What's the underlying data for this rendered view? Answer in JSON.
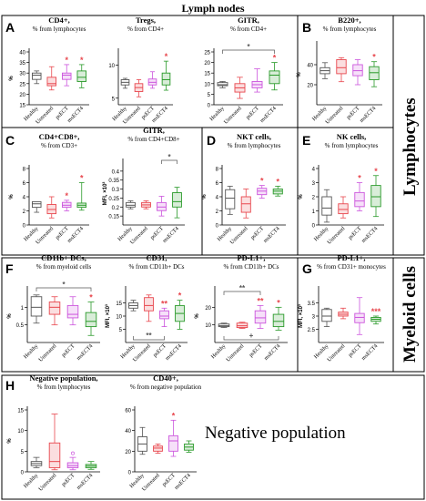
{
  "figure_title": "Lymph nodes",
  "side_labels": {
    "lymphocytes": "Lymphocytes",
    "myeloid": "Myeloid cells",
    "negative": "Negative population"
  },
  "section_letters": [
    "A",
    "B",
    "C",
    "D",
    "E",
    "F",
    "G",
    "H"
  ],
  "colors": {
    "Healthy": "#555555",
    "Untreated": "#e8474e",
    "psECT": "#cc55dd",
    "msECT4": "#2a9a2a",
    "star": "#e8474e",
    "annotation": "#555555"
  },
  "chart_data": [
    {
      "id": "cd4",
      "section": "A",
      "type": "box",
      "title": "CD4+,",
      "subtitle": "% from lymphocytes",
      "ylabel": "%",
      "categories": [
        "Healthy",
        "Untreated",
        "psECT",
        "msECT4"
      ],
      "ylim": [
        15,
        40
      ],
      "yticks": [
        15,
        20,
        25,
        30,
        35,
        40
      ],
      "boxes": [
        [
          25,
          27,
          29,
          30,
          31
        ],
        [
          22,
          24,
          25,
          28,
          33
        ],
        [
          24,
          27,
          29,
          30,
          34
        ],
        [
          23,
          26,
          28,
          31,
          34
        ]
      ],
      "stars": [
        "",
        "",
        "*",
        "*"
      ]
    },
    {
      "id": "tregs",
      "section": "A",
      "type": "box",
      "title": "Tregs,",
      "subtitle": "% from CD4+",
      "ylabel": "",
      "categories": [
        "Healthy",
        "Untreated",
        "psECT",
        "msECT4"
      ],
      "ylim": [
        4,
        12
      ],
      "yticks": [
        5,
        10
      ],
      "boxes": [
        [
          6.5,
          7,
          7.4,
          7.8,
          8
        ],
        [
          5.2,
          6,
          6.6,
          7.2,
          7.8
        ],
        [
          6.5,
          7,
          7.4,
          7.9,
          9
        ],
        [
          6.2,
          7,
          7.8,
          8.8,
          10.6
        ]
      ],
      "stars": [
        "",
        "",
        "",
        "*"
      ]
    },
    {
      "id": "gitr1",
      "section": "A",
      "type": "box",
      "title": "GITR,",
      "subtitle": "% from CD4+",
      "ylabel": "",
      "categories": [
        "Healthy",
        "Untreated",
        "psECT",
        "msECT4"
      ],
      "ylim": [
        0,
        25
      ],
      "yticks": [
        0,
        5,
        10,
        15,
        20,
        25
      ],
      "boxes": [
        [
          8,
          9,
          9.5,
          10.5,
          11
        ],
        [
          3,
          6,
          8,
          10,
          13
        ],
        [
          6,
          8,
          9.5,
          11,
          17
        ],
        [
          7,
          10,
          14,
          16,
          20
        ]
      ],
      "stars": [
        "",
        "",
        "",
        "*"
      ],
      "brackets": [
        {
          "from": 0,
          "to": 3,
          "side": "top",
          "label": "*"
        }
      ]
    },
    {
      "id": "b220",
      "section": "B",
      "type": "box",
      "title": "B220+,",
      "subtitle": "% from lymphocytes",
      "ylabel": "%",
      "categories": [
        "Healthy",
        "Untreated",
        "psECT",
        "msECT4"
      ],
      "ylim": [
        0,
        60
      ],
      "yticks": [
        20,
        40
      ],
      "boxes": [
        [
          26,
          31,
          34,
          37,
          42
        ],
        [
          23,
          31,
          37,
          45,
          47
        ],
        [
          20,
          29,
          34,
          40,
          45
        ],
        [
          18,
          25,
          32,
          38,
          43
        ]
      ],
      "stars": [
        "",
        "",
        "",
        "*"
      ]
    },
    {
      "id": "cd4cd8",
      "section": "C",
      "type": "box",
      "title": "CD4+CD8+,",
      "subtitle": "% from CD3+",
      "ylabel": "%",
      "categories": [
        "Healthy",
        "Untreated",
        "psECT",
        "msECT4"
      ],
      "ylim": [
        0,
        8
      ],
      "yticks": [
        0,
        2,
        4,
        6,
        8
      ],
      "boxes": [
        [
          1.8,
          2.5,
          3,
          3.3,
          3.3
        ],
        [
          1,
          1.6,
          2.2,
          2.9,
          4
        ],
        [
          2,
          2.5,
          2.8,
          3.2,
          3.5
        ],
        [
          2.1,
          2.5,
          2.8,
          3.1,
          6
        ]
      ],
      "stars": [
        "",
        "",
        "*",
        "*"
      ]
    },
    {
      "id": "gitr2",
      "section": "C",
      "type": "box",
      "title": "GITR,",
      "subtitle": "% from CD4+CD8+",
      "ylabel": "MFI, ×10³",
      "categories": [
        "Healthy",
        "Untreated",
        "psECT",
        "msECT4"
      ],
      "ylim": [
        0.1,
        0.45
      ],
      "yticks": [
        0.15,
        0.2,
        0.25,
        0.3,
        0.35,
        0.4
      ],
      "boxes": [
        [
          0.19,
          0.2,
          0.21,
          0.225,
          0.235
        ],
        [
          0.19,
          0.2,
          0.212,
          0.225,
          0.235
        ],
        [
          0.15,
          0.18,
          0.2,
          0.225,
          0.26
        ],
        [
          0.14,
          0.2,
          0.23,
          0.28,
          0.31
        ]
      ],
      "stars": [
        "",
        "",
        "",
        ""
      ],
      "brackets": [
        {
          "from": 2,
          "to": 3,
          "side": "top",
          "label": "*"
        }
      ]
    },
    {
      "id": "nkt",
      "section": "D",
      "type": "box",
      "title": "NKT cells,",
      "subtitle": "% from lymphocytes",
      "ylabel": "%",
      "categories": [
        "Healthy",
        "Untreated",
        "psECT",
        "msECT4"
      ],
      "ylim": [
        0,
        8
      ],
      "yticks": [
        0,
        2,
        4,
        6,
        8
      ],
      "boxes": [
        [
          1.5,
          2.3,
          3.8,
          5,
          5.5
        ],
        [
          1,
          1.8,
          3,
          4,
          5.1
        ],
        [
          3.8,
          4.3,
          4.8,
          5.2,
          5.6
        ],
        [
          4.1,
          4.4,
          4.8,
          5.1,
          5.5
        ]
      ],
      "stars": [
        "",
        "",
        "*",
        "*"
      ]
    },
    {
      "id": "nk",
      "section": "E",
      "type": "box",
      "title": "NK cells,",
      "subtitle": "% from lymphocytes",
      "ylabel": "%",
      "categories": [
        "Healthy",
        "Untreated",
        "psECT",
        "msECT4"
      ],
      "ylim": [
        0,
        4
      ],
      "yticks": [
        0,
        1,
        2,
        3,
        4
      ],
      "boxes": [
        [
          0.2,
          0.7,
          1.2,
          2,
          2.5
        ],
        [
          0.5,
          0.8,
          1.1,
          1.5,
          2
        ],
        [
          1,
          1.3,
          1.7,
          2.3,
          3
        ],
        [
          0.6,
          1.3,
          2,
          2.8,
          3.5
        ]
      ],
      "stars": [
        "",
        "",
        "*",
        "*"
      ]
    },
    {
      "id": "cd11b",
      "section": "F",
      "type": "box",
      "title": "CD11b+ DCs,",
      "subtitle": "% from myeloid cells",
      "ylabel": "%",
      "categories": [
        "Healthy",
        "Untreated",
        "psECT",
        "msECT4"
      ],
      "ylim": [
        0,
        1.5
      ],
      "yticks": [
        0.5,
        1.0
      ],
      "boxes": [
        [
          0.55,
          0.75,
          1.0,
          1.3,
          1.35
        ],
        [
          0.5,
          0.8,
          1.0,
          1.15,
          1.3
        ],
        [
          0.5,
          0.7,
          0.8,
          1.05,
          1.3
        ],
        [
          0.2,
          0.45,
          0.6,
          0.85,
          1.15
        ]
      ],
      "stars": [
        "",
        "",
        "",
        "*"
      ],
      "brackets": [
        {
          "from": 0,
          "to": 3,
          "side": "top",
          "label": "*"
        }
      ]
    },
    {
      "id": "cd31",
      "section": "F",
      "type": "box",
      "title": "CD31,",
      "subtitle": "% from CD11b+ DCs",
      "ylabel": "MFI, ×10³",
      "categories": [
        "Healthy",
        "Untreated",
        "psECT",
        "msECT4"
      ],
      "ylim": [
        0,
        20
      ],
      "yticks": [
        5,
        10,
        15
      ],
      "boxes": [
        [
          12,
          13,
          14,
          15,
          16
        ],
        [
          8,
          12,
          14,
          17,
          18
        ],
        [
          6,
          9,
          10,
          12,
          13
        ],
        [
          5,
          8,
          11,
          14,
          16
        ]
      ],
      "stars": [
        "",
        "",
        "**",
        "*"
      ],
      "brackets": [
        {
          "from": 0,
          "to": 2,
          "side": "bottom",
          "label": "**"
        }
      ]
    },
    {
      "id": "pdl1a",
      "section": "F",
      "type": "box",
      "title": "PD-L1+,",
      "subtitle": "% from CD11b+ DCs",
      "ylabel": "%",
      "categories": [
        "Healthy",
        "Untreated",
        "psECT",
        "msECT4"
      ],
      "ylim": [
        0,
        30
      ],
      "yticks": [
        10,
        20
      ],
      "boxes": [
        [
          8.5,
          9,
          9.5,
          10.5,
          11
        ],
        [
          8,
          8.5,
          9.5,
          11,
          11.5
        ],
        [
          8,
          11,
          14,
          18,
          21
        ],
        [
          7,
          9,
          12,
          16,
          20
        ]
      ],
      "stars": [
        "",
        "",
        "**",
        "*"
      ],
      "brackets": [
        {
          "from": 0,
          "to": 2,
          "side": "top",
          "label": "**"
        },
        {
          "from": 0,
          "to": 3,
          "side": "bottom",
          "label": "+"
        }
      ]
    },
    {
      "id": "pdl1b",
      "section": "G",
      "type": "box",
      "title": "PD-L1+,",
      "subtitle": "% from CD31+ monocytes",
      "ylabel": "MFI, ×10³",
      "categories": [
        "Healthy",
        "Untreated",
        "psECT",
        "msECT4"
      ],
      "ylim": [
        2.0,
        4.0
      ],
      "yticks": [
        2.5,
        3.0,
        3.5
      ],
      "boxes": [
        [
          2.6,
          2.8,
          3.0,
          3.25,
          3.3
        ],
        [
          2.9,
          3.0,
          3.07,
          3.15,
          3.3
        ],
        [
          2.3,
          2.75,
          2.95,
          3.1,
          3.7
        ],
        [
          2.7,
          2.8,
          2.88,
          2.95,
          3.0
        ]
      ],
      "stars": [
        "",
        "",
        "",
        "***"
      ]
    },
    {
      "id": "neg",
      "section": "H",
      "type": "box",
      "title": "Negative population,",
      "subtitle": "% from lymphocytes",
      "ylabel": "%",
      "categories": [
        "Healthy",
        "Untreated",
        "psECT",
        "msECT4"
      ],
      "ylim": [
        0,
        15
      ],
      "yticks": [
        0,
        5,
        10,
        15
      ],
      "boxes": [
        [
          1,
          1.5,
          2,
          2.5,
          3.5
        ],
        [
          0.5,
          1,
          2.5,
          7,
          14
        ],
        [
          0.5,
          1,
          1.5,
          2.2,
          3.5
        ],
        [
          0.6,
          1,
          1.4,
          1.8,
          2.5
        ]
      ],
      "stars": [
        "",
        "",
        "",
        ""
      ],
      "outliers": [
        [],
        [],
        [
          4.5
        ],
        []
      ]
    },
    {
      "id": "cd40",
      "section": "H",
      "type": "box",
      "title": "CD40+,",
      "subtitle": "% from negative population",
      "ylabel": "",
      "categories": [
        "Healthy",
        "Untreated",
        "psECT",
        "msECT4"
      ],
      "ylim": [
        0,
        60
      ],
      "yticks": [
        0,
        20,
        40,
        60
      ],
      "boxes": [
        [
          17,
          20,
          27,
          34,
          43
        ],
        [
          18,
          20,
          23,
          25,
          27
        ],
        [
          15,
          20,
          30,
          35,
          50
        ],
        [
          19,
          21,
          24,
          27,
          30
        ]
      ],
      "stars": [
        "",
        "",
        "*",
        ""
      ]
    }
  ]
}
